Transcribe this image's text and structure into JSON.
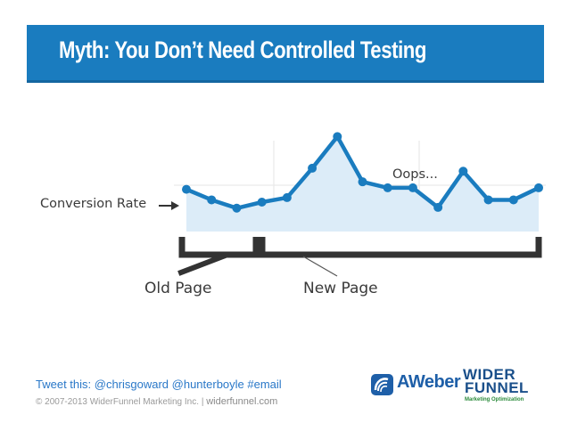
{
  "slide": {
    "title": "Myth: You Don’t Need Controlled Testing",
    "tweet": "Tweet this: @chrisgoward @hunterboyle #email",
    "copyright": "© 2007-2013 WiderFunnel Marketing Inc.",
    "copyright_sep": "|",
    "site": "widerfunnel.com",
    "logos": {
      "aweber": "AWeber",
      "widerfunnel_line1": "WIDER",
      "widerfunnel_line2": "FUNNEL",
      "widerfunnel_tagline": "Marketing Optimization"
    },
    "colors": {
      "title_bar": "#1a7cbf",
      "line": "#1a7cbf",
      "area": "#dcecf8",
      "bracket": "#333333",
      "tweet": "#2a78c8"
    }
  },
  "chart_data": {
    "type": "line",
    "title": "",
    "xlabel": "",
    "ylabel": "",
    "series": [
      {
        "values": [
          5.6,
          4.2,
          3.1,
          3.9,
          4.5,
          8.4,
          12.6,
          6.6,
          5.8,
          5.8,
          3.2,
          8.0,
          4.2,
          4.2,
          5.8
        ]
      }
    ],
    "annotations": {
      "y_label": "Conversion Rate",
      "peak_note": "Oops...",
      "old_period": "Old Page",
      "new_period": "New Page"
    },
    "periods": [
      {
        "name": "Old Page",
        "from_index": 0,
        "to_index": 2
      },
      {
        "name": "New Page",
        "from_index": 3,
        "to_index": 14
      }
    ],
    "grid": true
  }
}
